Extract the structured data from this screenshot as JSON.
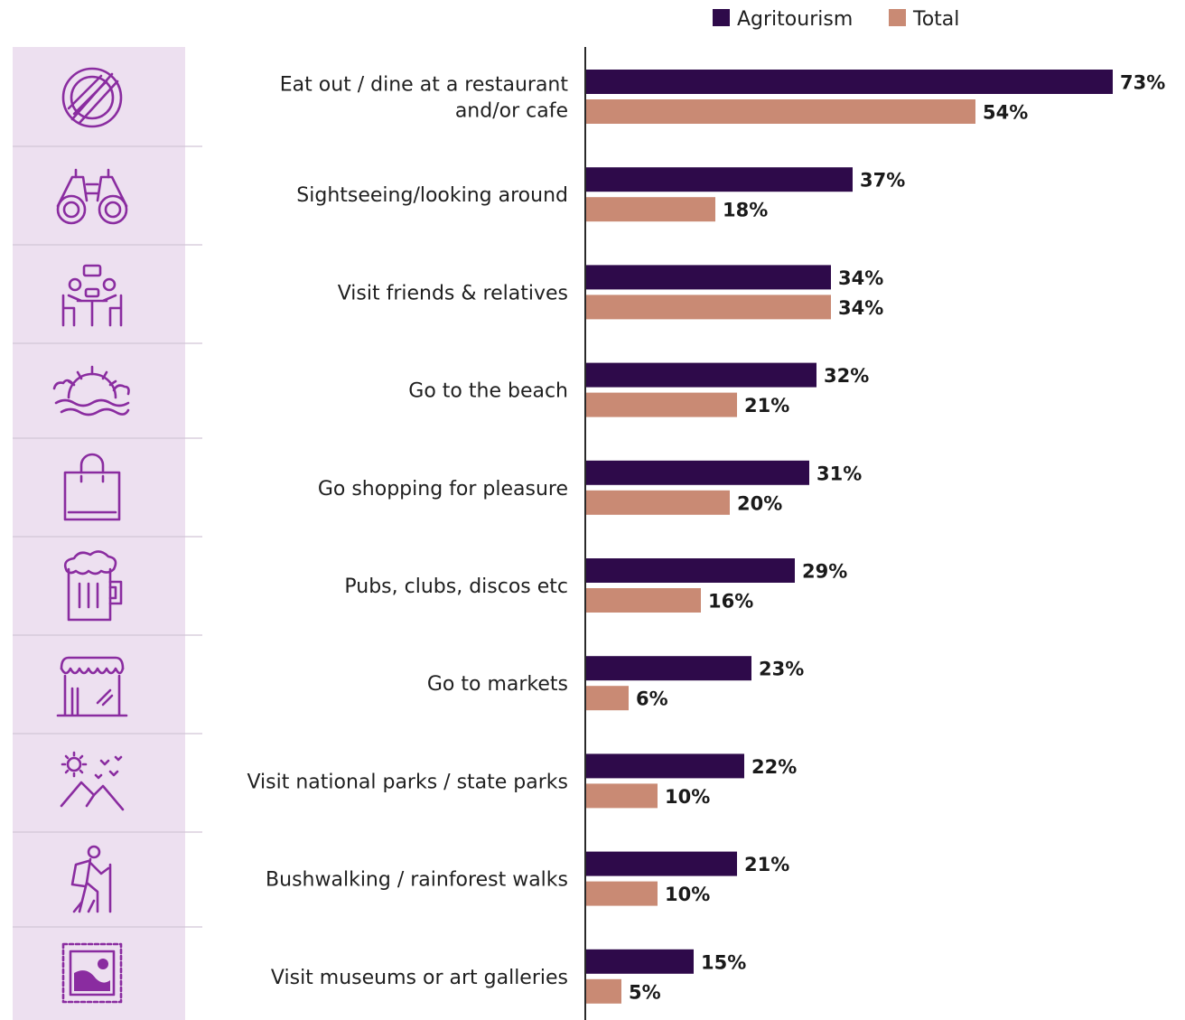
{
  "chart_data": {
    "type": "bar",
    "orientation": "horizontal",
    "categories": [
      [
        "Eat out / dine at a restaurant",
        "and/or cafe"
      ],
      [
        "Sightseeing/looking around"
      ],
      [
        "Visit friends & relatives"
      ],
      [
        "Go to the beach"
      ],
      [
        "Go shopping for pleasure"
      ],
      [
        "Pubs, clubs, discos etc"
      ],
      [
        "Go to markets"
      ],
      [
        "Visit national parks / state parks"
      ],
      [
        "Bushwalking / rainforest walks"
      ],
      [
        "Visit museums or art galleries"
      ]
    ],
    "series": [
      {
        "name": "Agritourism",
        "color": "#2e0a4a",
        "values": [
          73,
          37,
          34,
          32,
          31,
          29,
          23,
          22,
          21,
          15
        ]
      },
      {
        "name": "Total",
        "color": "#c98a74",
        "values": [
          54,
          18,
          34,
          21,
          20,
          16,
          6,
          10,
          10,
          5
        ]
      }
    ],
    "value_suffix": "%",
    "xlim": [
      0,
      73
    ],
    "legend_position": "top-right",
    "grid": false,
    "icon_panel_color": "#ede0f0",
    "icon_color": "#8a2ca0",
    "icons": [
      "dining-icon",
      "binoculars-icon",
      "friends-meeting-icon",
      "beach-sunset-icon",
      "shopping-bag-icon",
      "beer-mug-icon",
      "market-stall-icon",
      "national-park-icon",
      "hiker-icon",
      "art-stamp-icon"
    ]
  }
}
